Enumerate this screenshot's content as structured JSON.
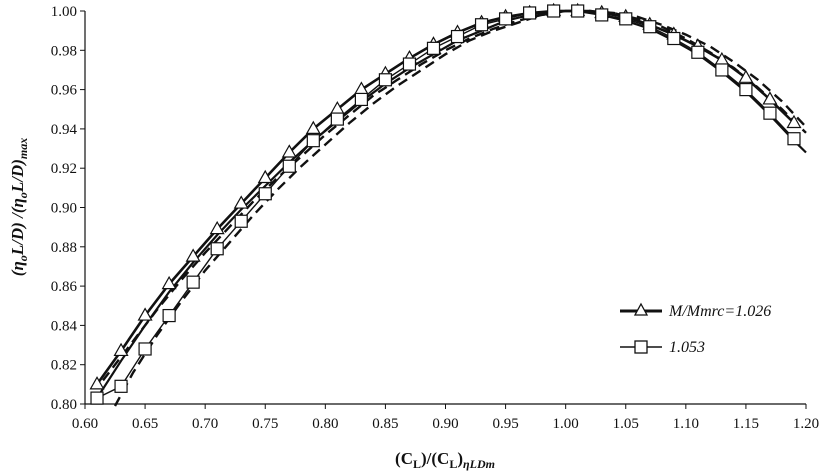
{
  "chart_data": {
    "type": "line",
    "title": "",
    "xlabel": {
      "main": "(C",
      "sub1": "L",
      "mid": ")/(C",
      "sub2": "L",
      "end": ")",
      "sub3": "ηLDm"
    },
    "ylabel": {
      "p1": "(η",
      "s1": "o",
      "p2": "L/D) /(η",
      "s2": "o",
      "p3": "L/D)",
      "s3": "max"
    },
    "xlim": [
      0.6,
      1.2
    ],
    "ylim": [
      0.8,
      1.0
    ],
    "xticks": [
      0.6,
      0.65,
      0.7,
      0.75,
      0.8,
      0.85,
      0.9,
      0.95,
      1.0,
      1.05,
      1.1,
      1.15,
      1.2
    ],
    "yticks": [
      0.8,
      0.82,
      0.84,
      0.86,
      0.88,
      0.9,
      0.92,
      0.94,
      0.96,
      0.98,
      1.0
    ],
    "xtick_labels": [
      "0.60",
      "0.65",
      "0.70",
      "0.75",
      "0.80",
      "0.85",
      "0.90",
      "0.95",
      "1.00",
      "1.05",
      "1.10",
      "1.15",
      "1.20"
    ],
    "ytick_labels": [
      "0.80",
      "0.82",
      "0.84",
      "0.86",
      "0.88",
      "0.90",
      "0.92",
      "0.94",
      "0.96",
      "0.98",
      "1.00"
    ],
    "grid": false,
    "legend_placement": "right",
    "series": [
      {
        "name": "M/Mmrc=1.026",
        "marker": "triangle",
        "x": [
          0.61,
          0.63,
          0.65,
          0.67,
          0.69,
          0.71,
          0.73,
          0.75,
          0.77,
          0.79,
          0.81,
          0.83,
          0.85,
          0.87,
          0.89,
          0.91,
          0.93,
          0.95,
          0.97,
          0.99,
          1.01,
          1.03,
          1.05,
          1.07,
          1.09,
          1.11,
          1.13,
          1.15,
          1.17,
          1.19
        ],
        "y": [
          0.81,
          0.827,
          0.845,
          0.861,
          0.875,
          0.889,
          0.902,
          0.915,
          0.928,
          0.94,
          0.95,
          0.96,
          0.968,
          0.976,
          0.983,
          0.989,
          0.994,
          0.997,
          0.999,
          1.0,
          1.0,
          0.999,
          0.997,
          0.993,
          0.988,
          0.982,
          0.975,
          0.966,
          0.955,
          0.943
        ]
      },
      {
        "name": "1.053",
        "marker": "square",
        "x": [
          0.61,
          0.63,
          0.65,
          0.67,
          0.69,
          0.71,
          0.73,
          0.75,
          0.77,
          0.79,
          0.81,
          0.83,
          0.85,
          0.87,
          0.89,
          0.91,
          0.93,
          0.95,
          0.97,
          0.99,
          1.01,
          1.03,
          1.05,
          1.07,
          1.09,
          1.11,
          1.13,
          1.15,
          1.17,
          1.19
        ],
        "y": [
          0.803,
          0.809,
          0.828,
          0.845,
          0.862,
          0.879,
          0.893,
          0.907,
          0.921,
          0.934,
          0.945,
          0.955,
          0.965,
          0.973,
          0.981,
          0.987,
          0.993,
          0.996,
          0.999,
          1.0,
          1.0,
          0.998,
          0.996,
          0.992,
          0.986,
          0.979,
          0.97,
          0.96,
          0.948,
          0.935
        ]
      }
    ],
    "extra_curves": [
      {
        "style": "dashed",
        "x": [
          0.615,
          0.64,
          0.66,
          0.68,
          0.7,
          0.72,
          0.74,
          0.76,
          0.78,
          0.8,
          0.82,
          0.84,
          0.86,
          0.88,
          0.9,
          0.92,
          0.94,
          0.96,
          0.98,
          1.0,
          1.02,
          1.04,
          1.06,
          1.08,
          1.1,
          1.12,
          1.14,
          1.16,
          1.18,
          1.2
        ],
        "y": [
          0.812,
          0.832,
          0.848,
          0.863,
          0.877,
          0.89,
          0.903,
          0.915,
          0.926,
          0.937,
          0.947,
          0.957,
          0.965,
          0.973,
          0.98,
          0.986,
          0.991,
          0.995,
          0.998,
          1.0,
          1.0,
          0.999,
          0.996,
          0.992,
          0.986,
          0.979,
          0.971,
          0.961,
          0.95,
          0.938
        ]
      },
      {
        "style": "dashed",
        "x": [
          0.625,
          0.64,
          0.66,
          0.68,
          0.7,
          0.72,
          0.74,
          0.76,
          0.78,
          0.8,
          0.82,
          0.84,
          0.86,
          0.88,
          0.9,
          0.92,
          0.94,
          0.96,
          0.98,
          1.0,
          1.02,
          1.04,
          1.06,
          1.08,
          1.1,
          1.12,
          1.14,
          1.16,
          1.18,
          1.2
        ],
        "y": [
          0.799,
          0.816,
          0.835,
          0.852,
          0.868,
          0.882,
          0.896,
          0.909,
          0.921,
          0.932,
          0.943,
          0.953,
          0.962,
          0.97,
          0.978,
          0.985,
          0.99,
          0.994,
          0.998,
          1.0,
          1.0,
          0.999,
          0.997,
          0.993,
          0.988,
          0.982,
          0.974,
          0.965,
          0.954,
          0.941
        ]
      },
      {
        "style": "solid",
        "x": [
          0.61,
          0.63,
          0.65,
          0.67,
          0.69,
          0.71,
          0.73,
          0.75,
          0.77,
          0.79,
          0.81,
          0.83,
          0.85,
          0.87,
          0.89,
          0.91,
          0.93,
          0.95,
          0.97,
          0.99,
          1.01,
          1.03,
          1.05,
          1.07,
          1.09,
          1.11,
          1.13,
          1.15,
          1.17,
          1.19,
          1.2
        ],
        "y": [
          0.803,
          0.822,
          0.84,
          0.857,
          0.872,
          0.886,
          0.899,
          0.911,
          0.923,
          0.934,
          0.944,
          0.954,
          0.963,
          0.971,
          0.978,
          0.985,
          0.99,
          0.995,
          0.998,
          1.0,
          1.0,
          0.998,
          0.995,
          0.991,
          0.985,
          0.978,
          0.969,
          0.959,
          0.947,
          0.934,
          0.928
        ]
      }
    ]
  }
}
